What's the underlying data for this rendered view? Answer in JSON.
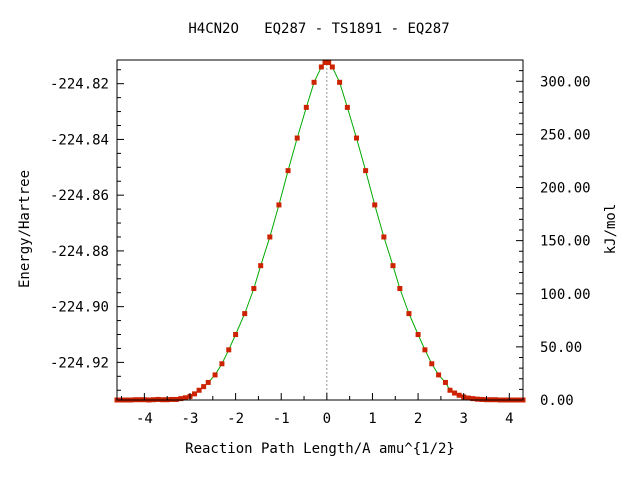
{
  "chart_data": {
    "type": "line",
    "title": "H4CN2O   EQ287 - TS1891 - EQ287",
    "xlabel": "Reaction Path Length/A amu^{1/2}",
    "ylabel": "Energy/Hartree",
    "y2label": "kJ/mol",
    "xlim": [
      -4.6,
      4.3
    ],
    "ylim": [
      -224.9335,
      -224.8115
    ],
    "y2lim": [
      0.0,
      320.0
    ],
    "x_ticks": [
      -4,
      -3,
      -2,
      -1,
      0,
      1,
      2,
      3,
      4
    ],
    "x_tick_labels": [
      "-4",
      "-3",
      "-2",
      "-1",
      "0",
      "1",
      "2",
      "3",
      "4"
    ],
    "y_ticks": [
      -224.82,
      -224.84,
      -224.86,
      -224.88,
      -224.9,
      -224.92
    ],
    "y_tick_labels": [
      "-224.82",
      "-224.84",
      "-224.86",
      "-224.88",
      "-224.90",
      "-224.92"
    ],
    "y2_ticks": [
      300,
      250,
      200,
      150,
      100,
      50,
      0
    ],
    "y2_tick_labels": [
      "300.00",
      "250.00",
      "200.00",
      "150.00",
      "100.00",
      "50.00",
      "0.00"
    ],
    "ts_marker_x": 0.0,
    "grid": false,
    "colors": {
      "line": "#00aa00",
      "points": "#cc2200",
      "ts_marker": "#999999"
    },
    "series": [
      {
        "x": [
          -4.6,
          -4.5,
          -4.4,
          -4.3,
          -4.2,
          -4.1,
          -4.0,
          -3.9,
          -3.8,
          -3.7,
          -3.6,
          -3.5,
          -3.4,
          -3.3,
          -3.2,
          -3.1,
          -3.0,
          -2.9,
          -2.8,
          -2.7,
          -2.6,
          -2.45,
          -2.3,
          -2.15,
          -2.0,
          -1.8,
          -1.6,
          -1.45,
          -1.25,
          -1.05,
          -0.85,
          -0.65,
          -0.45,
          -0.28,
          -0.12,
          -0.04,
          0.0,
          0.04,
          0.12,
          0.28,
          0.45,
          0.65,
          0.85,
          1.05,
          1.25,
          1.45,
          1.6,
          1.8,
          2.0,
          2.15,
          2.3,
          2.45,
          2.6,
          2.7,
          2.8,
          2.9,
          3.0,
          3.1,
          3.2,
          3.3,
          3.4,
          3.5,
          3.6,
          3.7,
          3.8,
          3.9,
          4.0,
          4.1,
          4.2,
          4.3
        ],
        "y": [
          -224.9335,
          -224.9335,
          -224.9335,
          -224.9335,
          -224.9334,
          -224.9334,
          -224.9334,
          -224.9335,
          -224.9334,
          -224.9333,
          -224.9334,
          -224.9334,
          -224.9333,
          -224.9333,
          -224.933,
          -224.9327,
          -224.9322,
          -224.9313,
          -224.93,
          -224.9287,
          -224.9272,
          -224.9245,
          -224.9205,
          -224.9155,
          -224.91,
          -224.9025,
          -224.8935,
          -224.8853,
          -224.875,
          -224.8635,
          -224.8512,
          -224.8395,
          -224.8285,
          -224.8195,
          -224.814,
          -224.8124,
          -224.8122,
          -224.8124,
          -224.814,
          -224.8195,
          -224.8285,
          -224.8395,
          -224.8512,
          -224.8635,
          -224.875,
          -224.8853,
          -224.8935,
          -224.9025,
          -224.91,
          -224.9155,
          -224.9205,
          -224.9245,
          -224.9272,
          -224.93,
          -224.931,
          -224.9318,
          -224.9324,
          -224.9328,
          -224.933,
          -224.9332,
          -224.9333,
          -224.9334,
          -224.9334,
          -224.9334,
          -224.9335,
          -224.9335,
          -224.9335,
          -224.9335,
          -224.9335,
          -224.9335
        ]
      }
    ]
  }
}
